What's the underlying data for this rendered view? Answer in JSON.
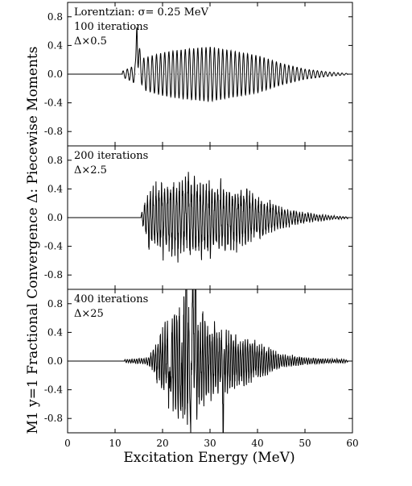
{
  "chart_data": {
    "type": "line",
    "shared_x": {
      "label": "Excitation Energy (MeV)",
      "range": [
        0,
        60
      ],
      "ticks": [
        0,
        10,
        20,
        30,
        40,
        50,
        60
      ],
      "tick_labels": [
        "0",
        "10",
        "20",
        "30",
        "40",
        "50",
        "60"
      ]
    },
    "shared_y": {
      "label": "M1 y=1 Fractional Convergence Δ: Piecewise Moments",
      "tick_labels": [
        "0.8",
        "0.4",
        "0.0",
        "-0.4",
        "-0.8"
      ]
    },
    "panels": [
      {
        "labels": [
          "Lorentzian: σ= 0.25 MeV",
          "100 iterations",
          "Δ×0.5"
        ],
        "ylim": [
          -1.0,
          1.0
        ],
        "yticks": [
          0.8,
          0.4,
          0.0,
          -0.4,
          -0.8
        ],
        "dotted_zero_line": true,
        "trace": {
          "onset_mev": 11.5,
          "end_mev": 59,
          "spike": {
            "x": 14.6,
            "y": 0.65
          },
          "envelope": [
            [
              11.5,
              0.04
            ],
            [
              13.5,
              0.1
            ],
            [
              16,
              0.22
            ],
            [
              20,
              0.3
            ],
            [
              25,
              0.35
            ],
            [
              30,
              0.38
            ],
            [
              35,
              0.32
            ],
            [
              40,
              0.26
            ],
            [
              45,
              0.15
            ],
            [
              50,
              0.07
            ],
            [
              55,
              0.03
            ],
            [
              59,
              0.01
            ]
          ],
          "period_mev": 0.88
        }
      },
      {
        "labels": [
          "200 iterations",
          "Δ×2.5"
        ],
        "ylim": [
          -1.0,
          1.0
        ],
        "yticks": [
          0.8,
          0.4,
          0.0,
          -0.4,
          -0.8
        ],
        "dotted_zero_line": false,
        "trace": {
          "onset_mev": 15.5,
          "end_mev": 59,
          "peak": {
            "x": 25.3,
            "y": 0.8
          },
          "envelope": [
            [
              15.5,
              0.05
            ],
            [
              17,
              0.4
            ],
            [
              20,
              0.5
            ],
            [
              25,
              0.55
            ],
            [
              30,
              0.5
            ],
            [
              35,
              0.45
            ],
            [
              40,
              0.3
            ],
            [
              45,
              0.15
            ],
            [
              50,
              0.07
            ],
            [
              55,
              0.03
            ],
            [
              59,
              0.01
            ]
          ],
          "period_mev": 0.62
        }
      },
      {
        "labels": [
          "400 iterations",
          "Δ×25"
        ],
        "ylim": [
          -1.0,
          1.0
        ],
        "yticks": [
          0.8,
          0.4,
          0.0,
          -0.4,
          -0.8
        ],
        "dotted_zero_line": false,
        "trace": {
          "onset_mev": 12.0,
          "end_mev": 59,
          "clipped_peaks": [
            25.0,
            26.3,
            26.9
          ],
          "min": {
            "x": 32.8,
            "y": -0.95
          },
          "envelope": [
            [
              12,
              0.02
            ],
            [
              17,
              0.05
            ],
            [
              19,
              0.3
            ],
            [
              22,
              0.65
            ],
            [
              25,
              0.9
            ],
            [
              28,
              0.65
            ],
            [
              32,
              0.45
            ],
            [
              36,
              0.35
            ],
            [
              40,
              0.25
            ],
            [
              45,
              0.1
            ],
            [
              50,
              0.05
            ],
            [
              55,
              0.03
            ],
            [
              59,
              0.02
            ]
          ],
          "period_mev": 0.5
        }
      }
    ]
  }
}
